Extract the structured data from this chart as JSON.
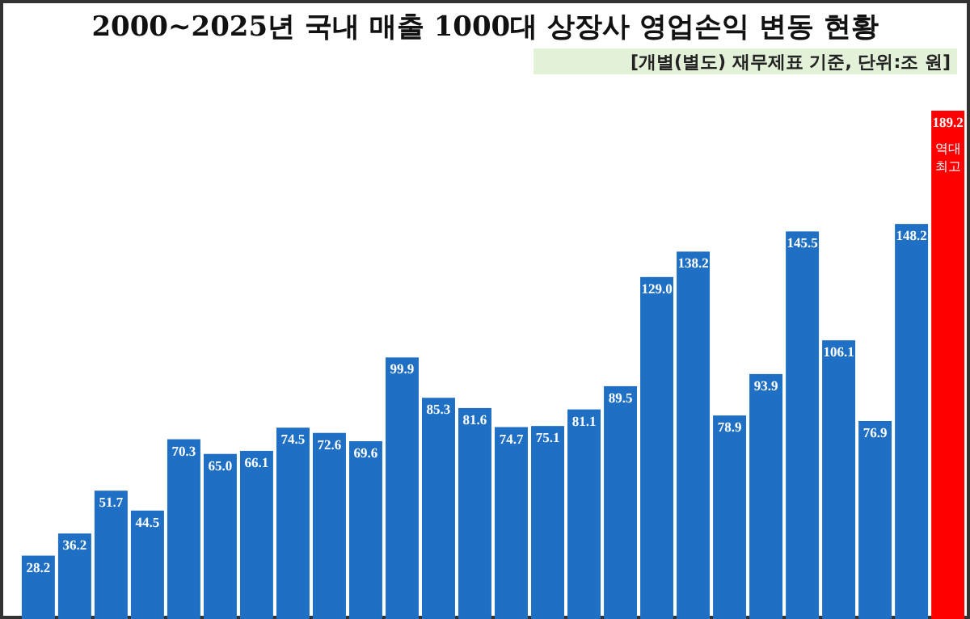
{
  "chart_data": {
    "type": "bar",
    "title": "2000~2025년 국내 매출 1000대 상장사 영업손익 변동 현황",
    "subtitle": "[개별(별도) 재무제표 기준, 단위:조 원]",
    "categories": [
      null,
      null,
      null,
      null,
      null,
      null,
      null,
      null,
      null,
      null,
      null,
      null,
      null,
      null,
      null,
      null,
      null,
      null,
      null,
      null,
      null,
      null,
      null,
      null,
      null,
      null
    ],
    "values": [
      28.2,
      36.2,
      51.7,
      44.5,
      70.3,
      65.0,
      66.1,
      74.5,
      72.6,
      69.6,
      99.9,
      85.3,
      81.6,
      74.7,
      75.1,
      81.1,
      89.5,
      129.0,
      138.2,
      78.9,
      93.9,
      145.5,
      106.1,
      76.9,
      148.2,
      189.2
    ],
    "colors": [
      "#1f6fc4",
      "#1f6fc4",
      "#1f6fc4",
      "#1f6fc4",
      "#1f6fc4",
      "#1f6fc4",
      "#1f6fc4",
      "#1f6fc4",
      "#1f6fc4",
      "#1f6fc4",
      "#1f6fc4",
      "#1f6fc4",
      "#1f6fc4",
      "#1f6fc4",
      "#1f6fc4",
      "#1f6fc4",
      "#1f6fc4",
      "#1f6fc4",
      "#1f6fc4",
      "#1f6fc4",
      "#1f6fc4",
      "#1f6fc4",
      "#1f6fc4",
      "#1f6fc4",
      "#1f6fc4",
      "#ff0000"
    ],
    "relative": false,
    "value_labels": [
      "28.2",
      "36.2",
      "51.7",
      "44.5",
      "70.3",
      "65.0",
      "66.1",
      "74.5",
      "72.6",
      "69.6",
      "99.9",
      "85.3",
      "81.6",
      "74.7",
      "75.1",
      "81.1",
      "89.5",
      "129.0",
      "138.2",
      "78.9",
      "93.9",
      "145.5",
      "106.1",
      "76.9",
      "148.2",
      "189.2"
    ],
    "annotations": [
      "역대 최고"
    ]
  }
}
